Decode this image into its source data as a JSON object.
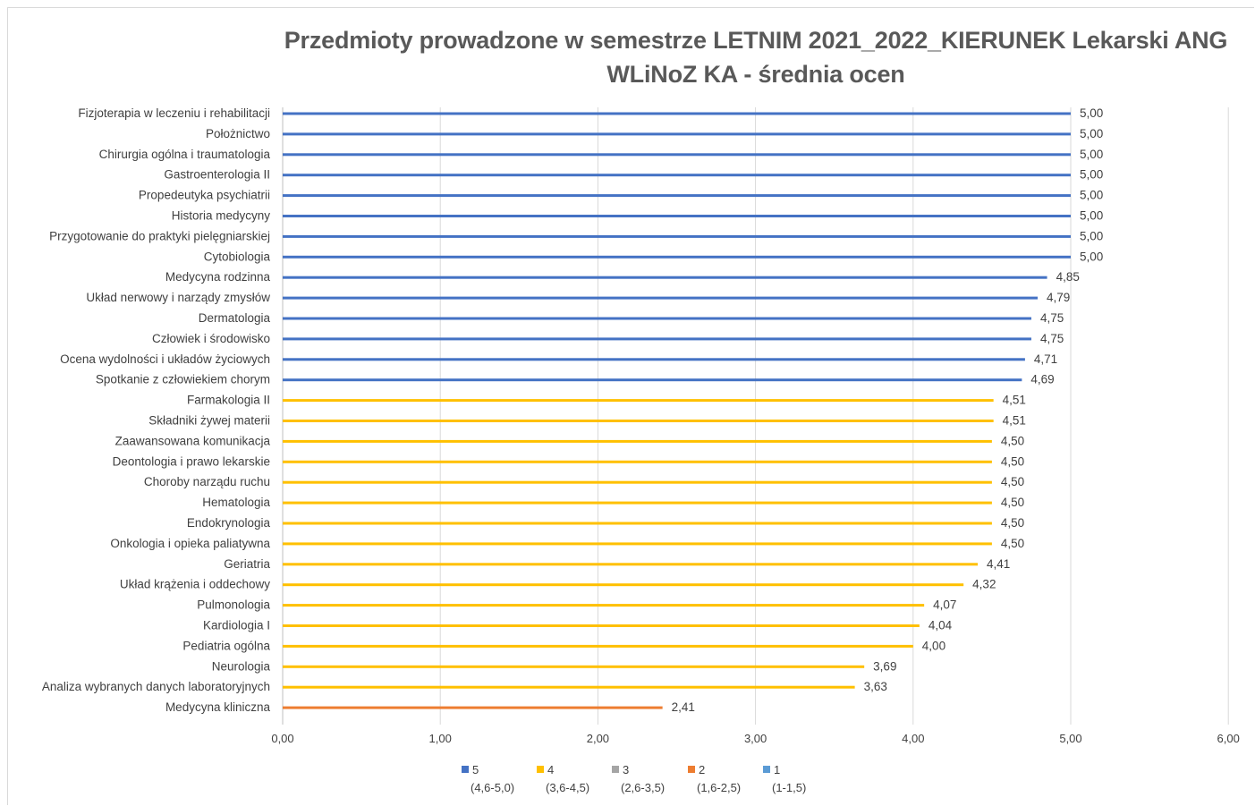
{
  "title": {
    "line1": "Przedmioty prowadzone w semestrze LETNIM 2021_2022_KIERUNEK  Lekarski ANG",
    "line2": "WLiNoZ KA - średnia ocen"
  },
  "chart_data": {
    "type": "bar",
    "orientation": "horizontal",
    "title": "Przedmioty prowadzone w semestrze LETNIM 2021_2022_KIERUNEK  Lekarski ANG WLiNoZ KA - średnia ocen",
    "xlim": [
      0,
      6
    ],
    "x_ticks": [
      "0,00",
      "1,00",
      "2,00",
      "3,00",
      "4,00",
      "5,00",
      "6,00"
    ],
    "gridlines": "vertical",
    "legend_position": "bottom",
    "series": [
      {
        "name": "5",
        "range": "(4,6-5,0)",
        "color": "#4472c4"
      },
      {
        "name": "4",
        "range": "(3,6-4,5)",
        "color": "#ffc000"
      },
      {
        "name": "3",
        "range": "(2,6-3,5)",
        "color": "#a5a5a5"
      },
      {
        "name": "2",
        "range": "(1,6-2,5)",
        "color": "#ed7d31"
      },
      {
        "name": "1",
        "range": "(1-1,5)",
        "color": "#5b9bd5"
      }
    ],
    "categories": [
      "Fizjoterapia w leczeniu i rehabilitacji",
      "Położnictwo",
      "Chirurgia ogólna i traumatologia",
      "Gastroenterologia II",
      "Propedeutyka psychiatrii",
      "Historia medycyny",
      "Przygotowanie do praktyki pielęgniarskiej",
      "Cytobiologia",
      "Medycyna rodzinna",
      "Układ nerwowy i narządy zmysłów",
      "Dermatologia",
      "Człowiek i środowisko",
      "Ocena wydolności i układów życiowych",
      "Spotkanie z człowiekiem chorym",
      "Farmakologia II",
      "Składniki żywej materii",
      "Zaawansowana komunikacja",
      "Deontologia i prawo lekarskie",
      "Choroby narządu ruchu",
      "Hematologia",
      "Endokrynologia",
      "Onkologia i opieka paliatywna",
      "Geriatria",
      "Układ krążenia i oddechowy",
      "Pulmonologia",
      "Kardiologia I",
      "Pediatria ogólna",
      "Neurologia",
      "Analiza wybranych danych laboratoryjnych",
      "Medycyna kliniczna"
    ],
    "values": [
      5.0,
      5.0,
      5.0,
      5.0,
      5.0,
      5.0,
      5.0,
      5.0,
      4.85,
      4.79,
      4.75,
      4.75,
      4.71,
      4.69,
      4.51,
      4.51,
      4.5,
      4.5,
      4.5,
      4.5,
      4.5,
      4.5,
      4.41,
      4.32,
      4.07,
      4.04,
      4.0,
      3.69,
      3.63,
      2.41
    ],
    "value_labels": [
      "5,00",
      "5,00",
      "5,00",
      "5,00",
      "5,00",
      "5,00",
      "5,00",
      "5,00",
      "4,85",
      "4,79",
      "4,75",
      "4,75",
      "4,71",
      "4,69",
      "4,51",
      "4,51",
      "4,50",
      "4,50",
      "4,50",
      "4,50",
      "4,50",
      "4,50",
      "4,41",
      "4,32",
      "4,07",
      "4,04",
      "4,00",
      "3,69",
      "3,63",
      "2,41"
    ],
    "bar_series": [
      "5",
      "5",
      "5",
      "5",
      "5",
      "5",
      "5",
      "5",
      "5",
      "5",
      "5",
      "5",
      "5",
      "5",
      "4",
      "4",
      "4",
      "4",
      "4",
      "4",
      "4",
      "4",
      "4",
      "4",
      "4",
      "4",
      "4",
      "4",
      "4",
      "2"
    ]
  }
}
